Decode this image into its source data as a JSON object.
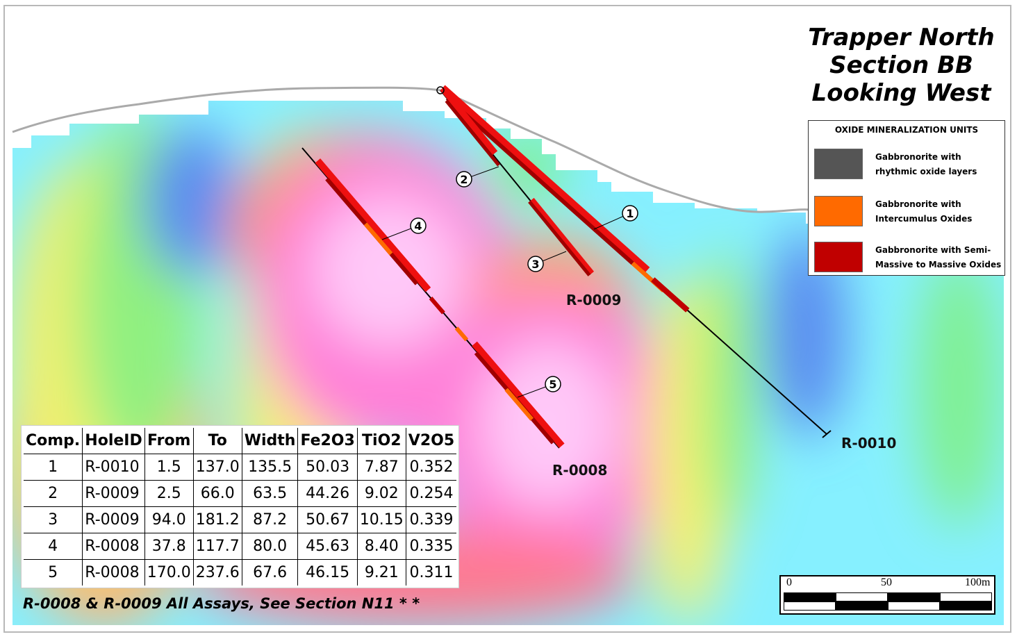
{
  "title": {
    "line1": "Trapper North",
    "line2": "Section BB",
    "line3": "Looking West"
  },
  "legend": {
    "title": "OXIDE MINERALIZATION UNITS",
    "items": [
      {
        "label": "Gabbronorite with rhythmic oxide layers",
        "color": "#555555"
      },
      {
        "label": "Gabbronorite with Intercumulus Oxides",
        "color": "#ff6a00"
      },
      {
        "label": "Gabbronorite with Semi-Massive to Massive Oxides",
        "color": "#c00000"
      }
    ]
  },
  "holes": {
    "r0008": "R-0008",
    "r0009": "R-0009",
    "r0010": "R-0010"
  },
  "composite_markers": [
    "1",
    "2",
    "3",
    "4",
    "5"
  ],
  "table": {
    "headers": [
      "Comp.",
      "HoleID",
      "From",
      "To",
      "Width",
      "Fe2O3",
      "TiO2",
      "V2O5"
    ],
    "rows": [
      [
        "1",
        "R-0010",
        "1.5",
        "137.0",
        "135.5",
        "50.03",
        "7.87",
        "0.352"
      ],
      [
        "2",
        "R-0009",
        "2.5",
        "66.0",
        "63.5",
        "44.26",
        "9.02",
        "0.254"
      ],
      [
        "3",
        "R-0009",
        "94.0",
        "181.2",
        "87.2",
        "50.67",
        "10.15",
        "0.339"
      ],
      [
        "4",
        "R-0008",
        "37.8",
        "117.7",
        "80.0",
        "45.63",
        "8.40",
        "0.335"
      ],
      [
        "5",
        "R-0008",
        "170.0",
        "237.6",
        "67.6",
        "46.15",
        "9.21",
        "0.311"
      ]
    ]
  },
  "footnote": "R-0008 & R-0009 All Assays, See Section N11 * *",
  "scale_bar": {
    "label_0": "0",
    "label_50": "50",
    "label_100": "100m"
  }
}
